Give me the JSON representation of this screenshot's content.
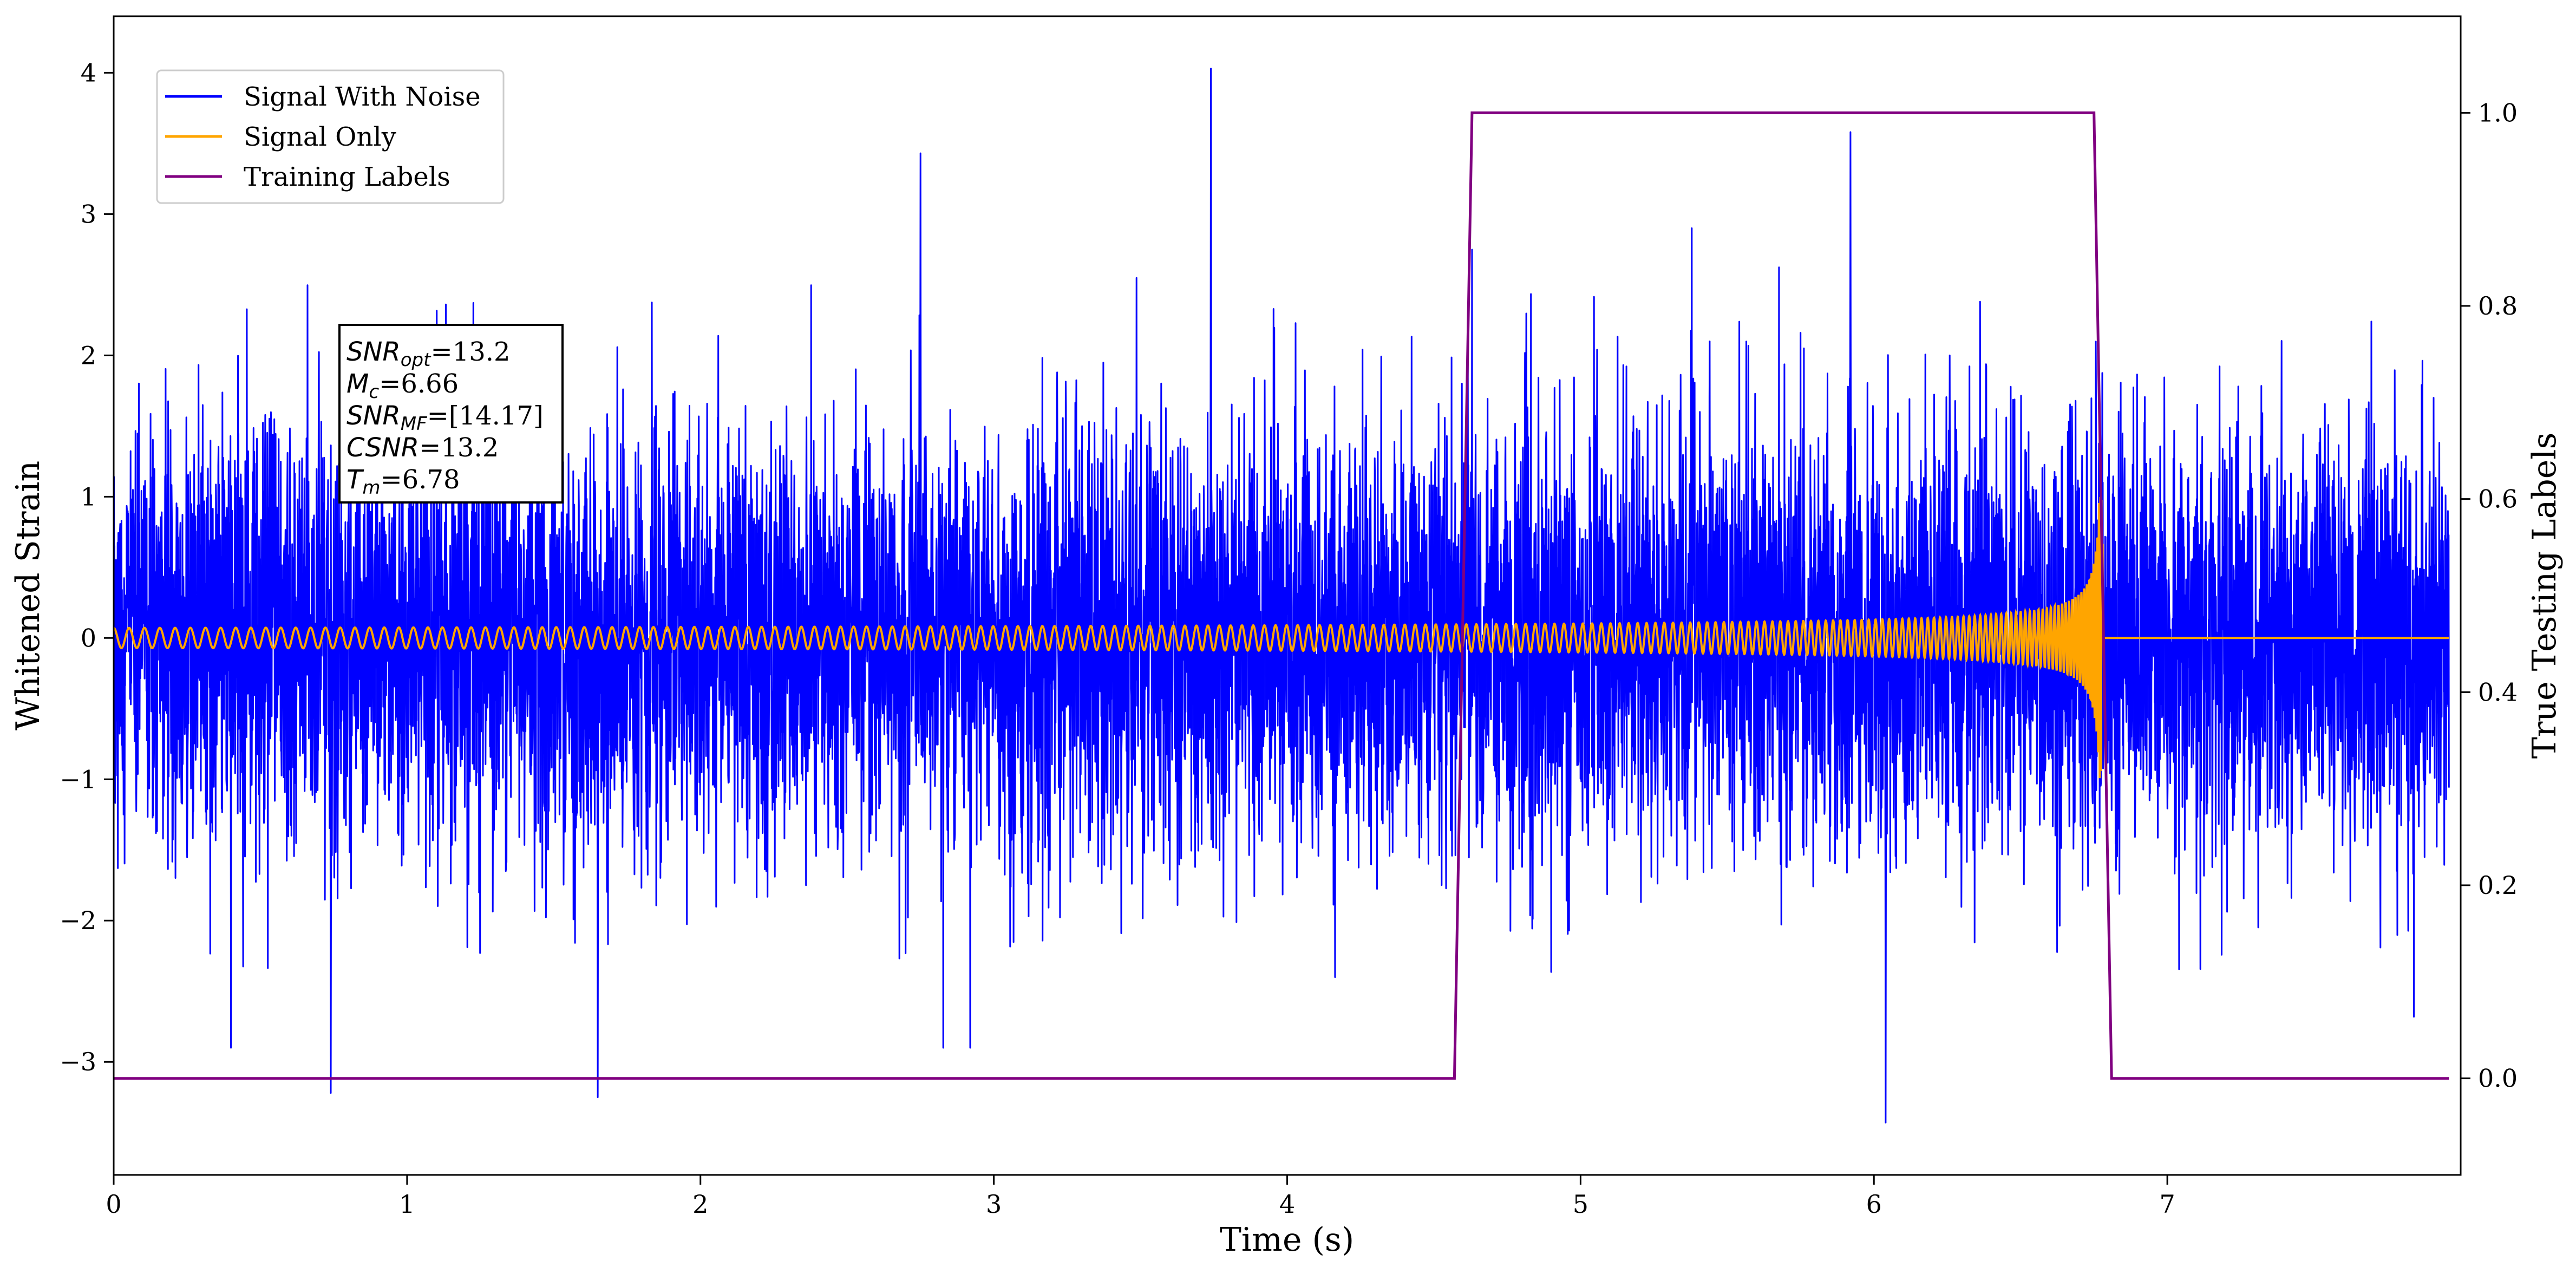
{
  "chart_data": {
    "type": "line",
    "xlabel": "Time (s)",
    "ylabel": "Whitened Strain",
    "y2label": "True Testing Labels",
    "xlim": [
      0,
      8.0
    ],
    "ylim": [
      -3.8,
      4.4
    ],
    "y2lim": [
      -0.1,
      1.1
    ],
    "x_ticks": [
      0,
      1,
      2,
      3,
      4,
      5,
      6,
      7
    ],
    "x_tick_labels": [
      "0",
      "1",
      "2",
      "3",
      "4",
      "5",
      "6",
      "7"
    ],
    "y_ticks": [
      -3,
      -2,
      -1,
      0,
      1,
      2,
      3,
      4
    ],
    "y_tick_labels": [
      "−3",
      "−2",
      "−1",
      "0",
      "1",
      "2",
      "3",
      "4"
    ],
    "y2_ticks": [
      0.0,
      0.2,
      0.4,
      0.6,
      0.8,
      1.0
    ],
    "y2_tick_labels": [
      "0.0",
      "0.2",
      "0.4",
      "0.6",
      "0.8",
      "1.0"
    ],
    "grid": false,
    "legend_position": "top-left",
    "series": [
      {
        "name": "Signal With Noise",
        "color": "#0000ff",
        "axis": "left",
        "noise_sigma": 0.75,
        "duration": 7.96,
        "peaks": [
          {
            "x": 0.74,
            "y": -3.22
          },
          {
            "x": 1.65,
            "y": -3.25
          },
          {
            "x": 2.75,
            "y": 3.43
          },
          {
            "x": 3.74,
            "y": 4.03
          },
          {
            "x": 5.92,
            "y": 3.58
          },
          {
            "x": 6.04,
            "y": -3.43
          }
        ]
      },
      {
        "name": "Signal Only",
        "color": "#ffa500",
        "axis": "left",
        "merger_time": 6.78,
        "min_amplitude": 0.07,
        "max_amplitude": 1.0,
        "start_frequency": 19,
        "post_merger_value": 0.0
      },
      {
        "name": "Training Labels",
        "color": "#800080",
        "axis": "right",
        "x": [
          0,
          4.57,
          4.63,
          6.75,
          6.81,
          7.96
        ],
        "y": [
          0,
          0,
          1,
          1,
          0,
          0
        ]
      }
    ],
    "annotation": {
      "lines": [
        {
          "sym": "SNR",
          "sub": "opt",
          "value": "=13.2"
        },
        {
          "sym": "M",
          "sub": "c",
          "value": "=6.66"
        },
        {
          "sym": "SNR",
          "sub": "MF",
          "value": "=[14.17]"
        },
        {
          "sym": "CSNR",
          "sub": "",
          "value": "=13.2"
        },
        {
          "sym": "T",
          "sub": "m",
          "value": "=6.78"
        }
      ]
    }
  }
}
